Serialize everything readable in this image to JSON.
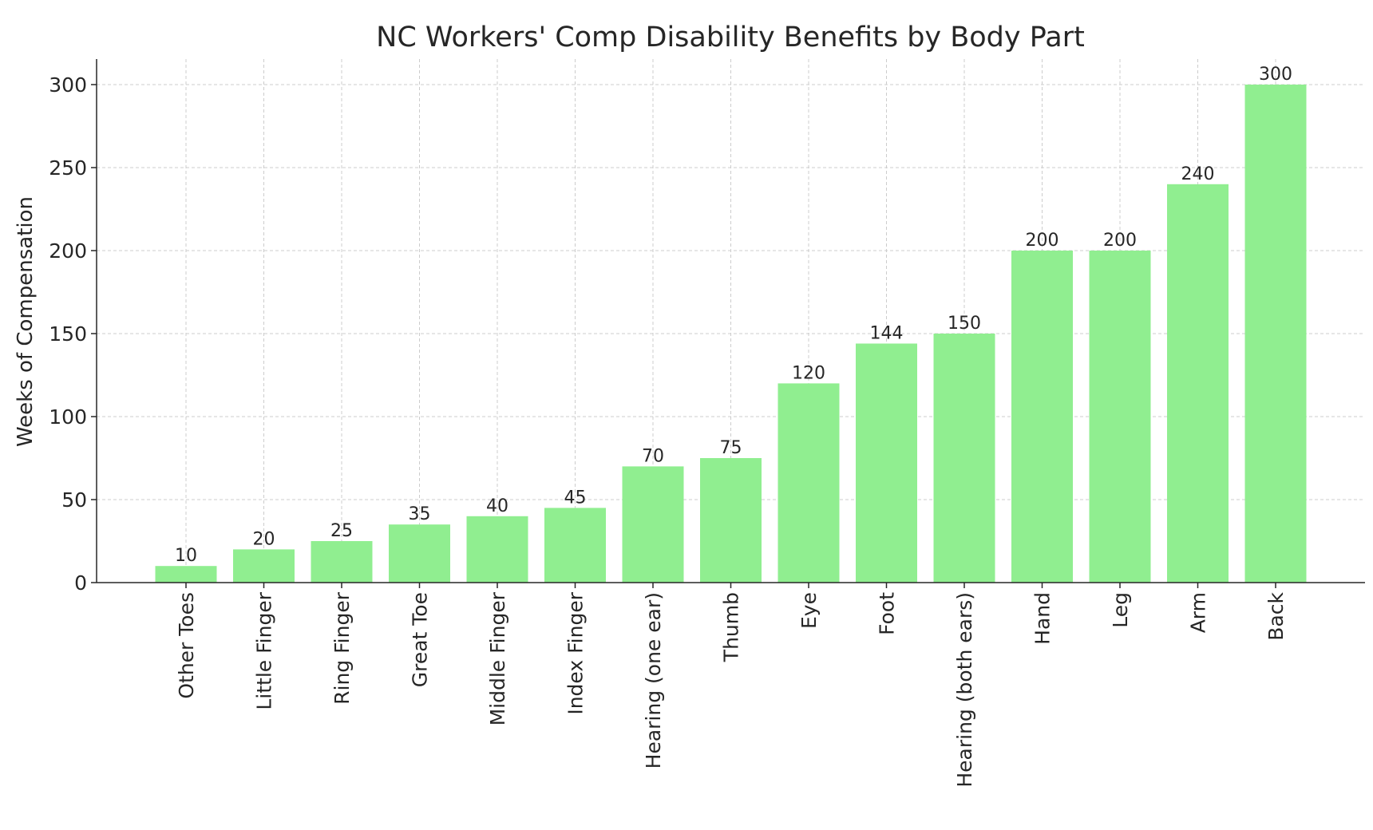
{
  "chart_data": {
    "type": "bar",
    "title": "NC Workers' Comp Disability Benefits by Body Part",
    "xlabel": "",
    "ylabel": "Weeks of Compensation",
    "categories": [
      "Other Toes",
      "Little Finger",
      "Ring Finger",
      "Great Toe",
      "Middle Finger",
      "Index Finger",
      "Hearing (one ear)",
      "Thumb",
      "Eye",
      "Foot",
      "Hearing (both ears)",
      "Hand",
      "Leg",
      "Arm",
      "Back"
    ],
    "values": [
      10,
      20,
      25,
      35,
      40,
      45,
      70,
      75,
      120,
      144,
      150,
      200,
      200,
      240,
      300
    ],
    "data_labels": [
      "10",
      "20",
      "25",
      "35",
      "40",
      "45",
      "70",
      "75",
      "120",
      "144",
      "150",
      "200",
      "200",
      "240",
      "300"
    ],
    "ylim": [
      0,
      315
    ],
    "yticks": [
      0,
      50,
      100,
      150,
      200,
      250,
      300
    ],
    "ytick_labels": [
      "0",
      "50",
      "100",
      "150",
      "200",
      "250",
      "300"
    ],
    "grid": true,
    "bar_color": "#90ee90",
    "xtick_rotation": 90
  }
}
